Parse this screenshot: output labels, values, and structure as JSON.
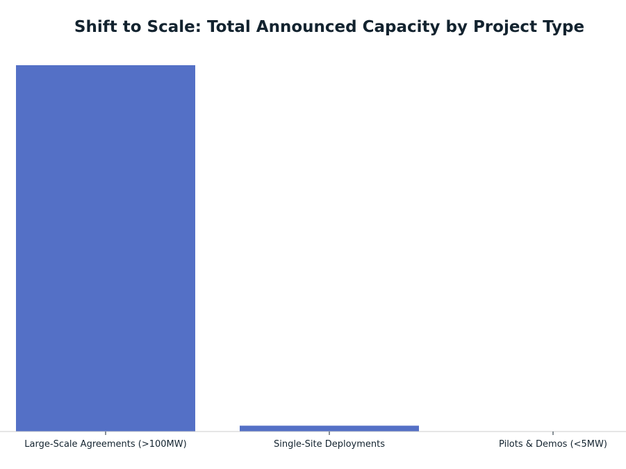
{
  "chart_data": {
    "type": "bar",
    "title": "Shift to Scale: Total Announced Capacity by Project Type",
    "categories": [
      "Large-Scale Agreements (>100MW)",
      "Single-Site Deployments",
      "Pilots & Demos (<5MW)"
    ],
    "values": [
      100,
      1.6,
      0.05
    ],
    "ylim": [
      0,
      105
    ],
    "xlabel": "",
    "ylabel": "",
    "grid": false,
    "legend": "none",
    "colors": {
      "bar": "#5470c6",
      "axis": "#cccccc",
      "text": "#13232f"
    }
  }
}
